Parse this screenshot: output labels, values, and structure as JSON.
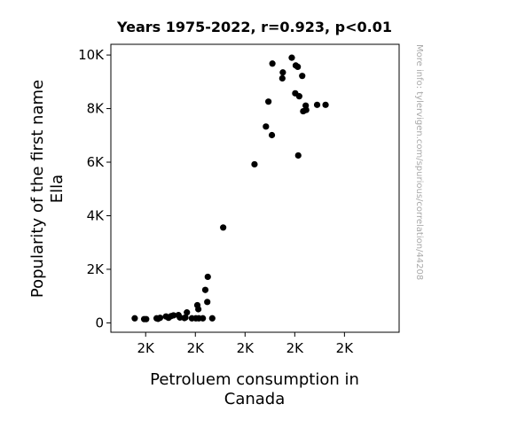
{
  "chart_data": {
    "type": "scatter",
    "title": "Years 1975-2022, r=0.923, p<0.01",
    "xlabel_lines": [
      "Petroluem consumption in",
      "Canada"
    ],
    "ylabel_lines": [
      "Popularity of the first name",
      "Ella"
    ],
    "watermark": "More info: tylervigen.com/spurious/correlation/44208",
    "xlim": [
      1430,
      2010
    ],
    "ylim": [
      -350,
      10400
    ],
    "x_ticks": [
      {
        "value": 1500,
        "label": "2K"
      },
      {
        "value": 1600,
        "label": "2K"
      },
      {
        "value": 1700,
        "label": "2K"
      },
      {
        "value": 1800,
        "label": "2K"
      },
      {
        "value": 1900,
        "label": "2K"
      }
    ],
    "y_ticks": [
      {
        "value": 0,
        "label": "0"
      },
      {
        "value": 2000,
        "label": "2K"
      },
      {
        "value": 4000,
        "label": "4K"
      },
      {
        "value": 6000,
        "label": "6K"
      },
      {
        "value": 8000,
        "label": "8K"
      },
      {
        "value": 10000,
        "label": "10K"
      }
    ],
    "point_color": "#000000",
    "grid": false,
    "series": [
      {
        "points": [
          [
            1478,
            170
          ],
          [
            1497,
            140
          ],
          [
            1501,
            140
          ],
          [
            1522,
            170
          ],
          [
            1525,
            150
          ],
          [
            1529,
            190
          ],
          [
            1541,
            240
          ],
          [
            1546,
            190
          ],
          [
            1551,
            250
          ],
          [
            1556,
            280
          ],
          [
            1566,
            290
          ],
          [
            1569,
            200
          ],
          [
            1578,
            180
          ],
          [
            1580,
            200
          ],
          [
            1583,
            390
          ],
          [
            1593,
            170
          ],
          [
            1601,
            170
          ],
          [
            1604,
            660
          ],
          [
            1606,
            510
          ],
          [
            1607,
            170
          ],
          [
            1615,
            170
          ],
          [
            1620,
            1230
          ],
          [
            1625,
            1720
          ],
          [
            1624,
            780
          ],
          [
            1634,
            170
          ],
          [
            1656,
            3560
          ],
          [
            1719,
            5920
          ],
          [
            1742,
            7330
          ],
          [
            1747,
            8260
          ],
          [
            1754,
            7010
          ],
          [
            1755,
            9680
          ],
          [
            1775,
            9130
          ],
          [
            1776,
            9350
          ],
          [
            1794,
            9900
          ],
          [
            1801,
            8570
          ],
          [
            1802,
            9610
          ],
          [
            1806,
            9560
          ],
          [
            1807,
            6250
          ],
          [
            1809,
            8460
          ],
          [
            1815,
            9220
          ],
          [
            1817,
            7900
          ],
          [
            1822,
            8110
          ],
          [
            1823,
            7950
          ],
          [
            1845,
            8140
          ],
          [
            1862,
            8140
          ]
        ]
      }
    ]
  }
}
